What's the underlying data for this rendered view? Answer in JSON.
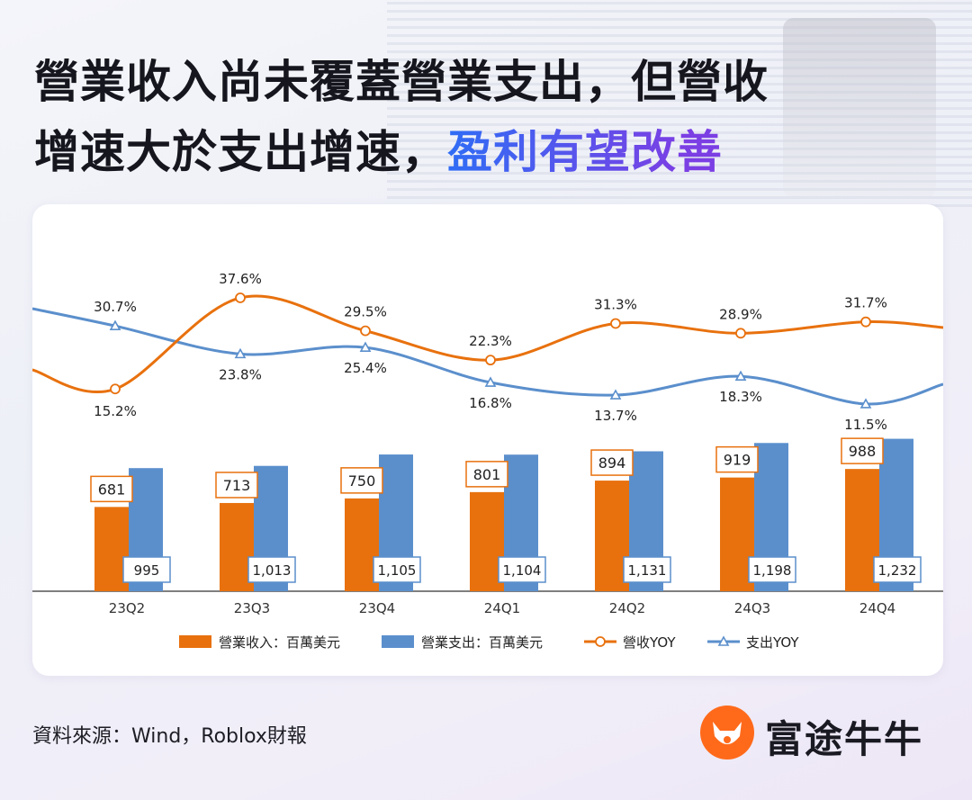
{
  "title": {
    "line1": "營業收入尚未覆蓋營業支出，但營收",
    "line2_plain": "增速大於支出增速，",
    "line2_highlight": "盈利有望改善"
  },
  "source": "資料來源：Wind，Roblox財報",
  "brand": {
    "name": "富途牛牛",
    "accent": "#ff6a1a"
  },
  "colors": {
    "revenue": "#e8710e",
    "expense": "#5b8fcc"
  },
  "chart_data": {
    "type": "bar",
    "categories": [
      "23Q2",
      "23Q3",
      "23Q4",
      "24Q1",
      "24Q2",
      "24Q3",
      "24Q4"
    ],
    "series": [
      {
        "name": "營業收入：百萬美元",
        "kind": "bar",
        "values": [
          681,
          713,
          750,
          801,
          894,
          919,
          988
        ],
        "labels": [
          "681",
          "713",
          "750",
          "801",
          "894",
          "919",
          "988"
        ]
      },
      {
        "name": "營業支出：百萬美元",
        "kind": "bar",
        "values": [
          995,
          1013,
          1105,
          1104,
          1131,
          1198,
          1232
        ],
        "labels": [
          "995",
          "1,013",
          "1,105",
          "1,104",
          "1,131",
          "1,198",
          "1,232"
        ]
      },
      {
        "name": "營收YOY",
        "kind": "line",
        "marker": "circle",
        "values": [
          15.2,
          37.6,
          29.5,
          22.3,
          31.3,
          28.9,
          31.7
        ],
        "labels": [
          "15.2%",
          "37.6%",
          "29.5%",
          "22.3%",
          "31.3%",
          "28.9%",
          "31.7%"
        ]
      },
      {
        "name": "支出YOY",
        "kind": "line",
        "marker": "triangle",
        "values": [
          30.7,
          23.8,
          25.4,
          16.8,
          13.7,
          18.3,
          11.5
        ],
        "labels": [
          "30.7%",
          "23.8%",
          "25.4%",
          "16.8%",
          "13.7%",
          "18.3%",
          "11.5%"
        ]
      }
    ],
    "title": "",
    "xlabel": "",
    "ylabel": "",
    "legend_position": "bottom"
  }
}
